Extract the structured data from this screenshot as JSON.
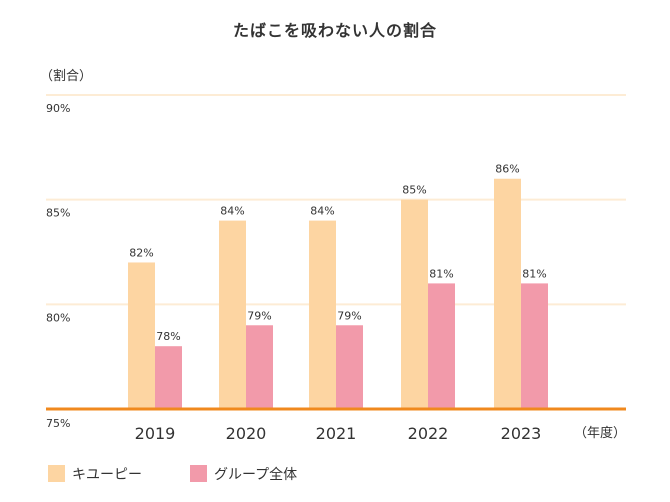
{
  "chart_data": {
    "type": "bar",
    "title": "たばこを吸わない人の割合",
    "ylabel": "（割合）",
    "xlabel": "（年度）",
    "categories": [
      "2019",
      "2020",
      "2021",
      "2022",
      "2023"
    ],
    "series": [
      {
        "name": "キユーピー",
        "values": [
          82,
          84,
          84,
          85,
          86
        ],
        "color": "#fdd5a2"
      },
      {
        "name": "グループ全体",
        "values": [
          78,
          79,
          79,
          81,
          81
        ],
        "color": "#f29aaa"
      }
    ],
    "ylim": [
      75,
      90
    ],
    "yticks": [
      75,
      80,
      85,
      90
    ],
    "value_suffix": "%",
    "grid": true,
    "gridline_color": "#fdecd5",
    "baseline_color": "#f0891e",
    "legend_position": "bottom-left"
  }
}
